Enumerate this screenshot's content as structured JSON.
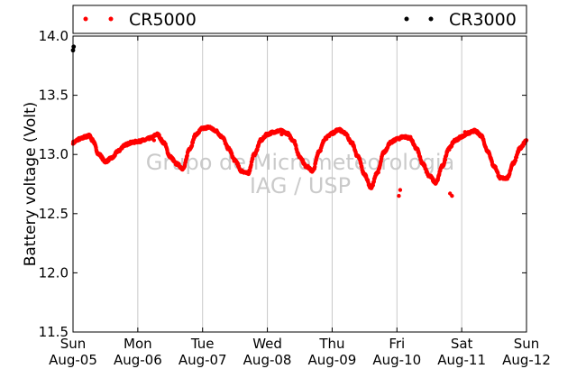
{
  "chart_data": {
    "type": "scatter",
    "ylabel": "Battery voltage (Volt)",
    "ylim": [
      11.5,
      14.0
    ],
    "yticks": [
      11.5,
      12.0,
      12.5,
      13.0,
      13.5,
      14.0
    ],
    "ytick_labels": [
      "11.5",
      "12.0",
      "12.5",
      "13.0",
      "13.5",
      "14.0"
    ],
    "xlim": [
      "2012-08-05",
      "2012-08-12"
    ],
    "x_ticks": [
      {
        "day": "Sun",
        "date": "Aug-05"
      },
      {
        "day": "Mon",
        "date": "Aug-06"
      },
      {
        "day": "Tue",
        "date": "Aug-07"
      },
      {
        "day": "Wed",
        "date": "Aug-08"
      },
      {
        "day": "Thu",
        "date": "Aug-09"
      },
      {
        "day": "Fri",
        "date": "Aug-10"
      },
      {
        "day": "Sat",
        "date": "Aug-11"
      },
      {
        "day": "Sun",
        "date": "Aug-12"
      }
    ],
    "grid": "vertical",
    "legend_placement": "top",
    "series": [
      {
        "name": "CR5000",
        "color": "#ff0000",
        "marker": "dot",
        "x_days": [
          0.0,
          0.1,
          0.2,
          0.25,
          0.3,
          0.4,
          0.5,
          0.6,
          0.7,
          0.8,
          0.9,
          1.0,
          1.1,
          1.2,
          1.3,
          1.4,
          1.5,
          1.6,
          1.7,
          1.8,
          1.9,
          2.0,
          2.1,
          2.2,
          2.3,
          2.4,
          2.5,
          2.6,
          2.7,
          2.8,
          2.9,
          3.0,
          3.1,
          3.2,
          3.3,
          3.4,
          3.5,
          3.6,
          3.7,
          3.8,
          3.9,
          4.0,
          4.1,
          4.2,
          4.3,
          4.4,
          4.5,
          4.6,
          4.7,
          4.8,
          4.9,
          5.0,
          5.1,
          5.2,
          5.3,
          5.4,
          5.5,
          5.6,
          5.7,
          5.8,
          5.9,
          6.0,
          6.1,
          6.2,
          6.3,
          6.4,
          6.5,
          6.6,
          6.7,
          6.8,
          6.9,
          7.0
        ],
        "y": [
          13.1,
          13.13,
          13.15,
          13.16,
          13.12,
          13.0,
          12.94,
          12.97,
          13.03,
          13.08,
          13.1,
          13.11,
          13.12,
          13.14,
          13.17,
          13.1,
          12.98,
          12.92,
          12.88,
          13.05,
          13.17,
          13.22,
          13.23,
          13.2,
          13.15,
          13.05,
          12.95,
          12.86,
          12.84,
          13.0,
          13.12,
          13.17,
          13.19,
          13.2,
          13.18,
          13.12,
          12.98,
          12.9,
          12.86,
          13.03,
          13.14,
          13.18,
          13.21,
          13.18,
          13.1,
          12.98,
          12.83,
          12.72,
          12.85,
          13.02,
          13.1,
          13.13,
          13.15,
          13.14,
          13.05,
          12.92,
          12.82,
          12.76,
          12.9,
          13.05,
          13.12,
          13.15,
          13.18,
          13.2,
          13.16,
          13.03,
          12.9,
          12.8,
          12.8,
          12.93,
          13.05,
          13.12
        ]
      },
      {
        "name": "CR3000",
        "color": "#000000",
        "marker": "dot",
        "x_days": [
          0.0,
          0.01
        ],
        "y": [
          13.88,
          13.91
        ]
      }
    ],
    "outliers_cr5000": {
      "x_days": [
        5.03,
        5.05,
        5.82,
        5.85,
        2.28,
        1.25,
        3.22,
        6.05
      ],
      "y": [
        12.65,
        12.7,
        12.67,
        12.65,
        13.15,
        13.12,
        13.17,
        13.19
      ]
    },
    "watermark": [
      "Grupo de Micrometeorologia",
      "IAG / USP"
    ]
  }
}
